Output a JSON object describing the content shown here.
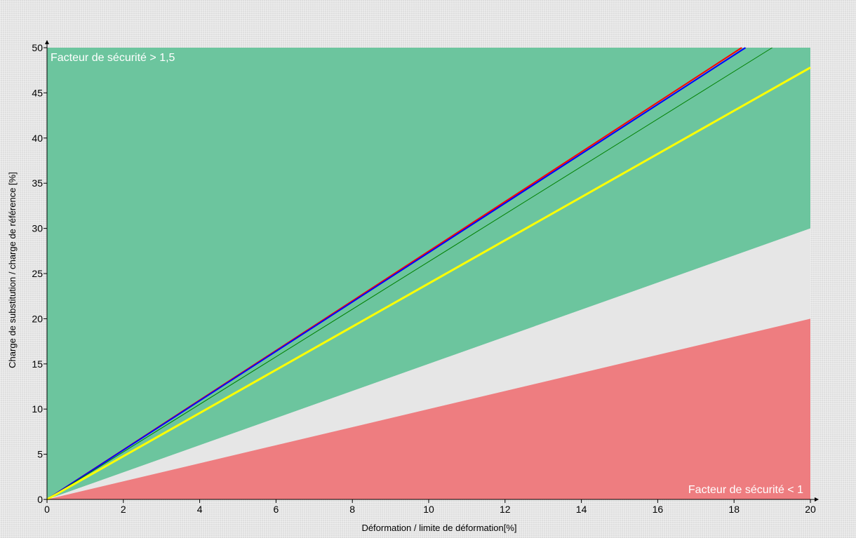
{
  "colors": {
    "zone_safe": "#6cc59e",
    "zone_mid": "#e6e6e6",
    "zone_unsafe": "#ee7d80",
    "axis": "#000000",
    "zone_label": "#ffffff"
  },
  "chart_data": {
    "type": "line",
    "title": "",
    "xlabel": "Déformation / limite de déformation[%]",
    "ylabel": "Charge de substitution / charge de référence [%]",
    "xlim": [
      0,
      20
    ],
    "ylim": [
      0,
      50
    ],
    "xticks": [
      0,
      2,
      4,
      6,
      8,
      10,
      12,
      14,
      16,
      18,
      20
    ],
    "yticks": [
      0,
      5,
      10,
      15,
      20,
      25,
      30,
      35,
      40,
      45,
      50
    ],
    "grid": false,
    "legend": "none",
    "zones": [
      {
        "id": "safe",
        "label": "Facteur de sécurité > 1,5",
        "label_position": "top-left",
        "color": "#6cc59e",
        "upper_at_xmax": 50,
        "lower_at_xmax": 30
      },
      {
        "id": "mid",
        "label": "",
        "color": "#e6e6e6",
        "upper_at_xmax": 30,
        "lower_at_xmax": 20
      },
      {
        "id": "unsafe",
        "label": "Facteur de sécurité < 1",
        "label_position": "bottom-right",
        "color": "#ee7d80",
        "upper_at_xmax": 20,
        "lower_at_xmax": 0
      }
    ],
    "series": [
      {
        "color": "#ff0000",
        "width": 2,
        "x": [
          0,
          18.2
        ],
        "y": [
          0,
          50
        ]
      },
      {
        "color": "#0000ff",
        "width": 2,
        "x": [
          0,
          18.3
        ],
        "y": [
          0,
          50
        ]
      },
      {
        "color": "#008000",
        "width": 1,
        "x": [
          0,
          19.0
        ],
        "y": [
          0,
          50
        ]
      },
      {
        "color": "#ffff00",
        "width": 3,
        "x": [
          0,
          20
        ],
        "y": [
          0,
          47.8
        ]
      }
    ]
  }
}
